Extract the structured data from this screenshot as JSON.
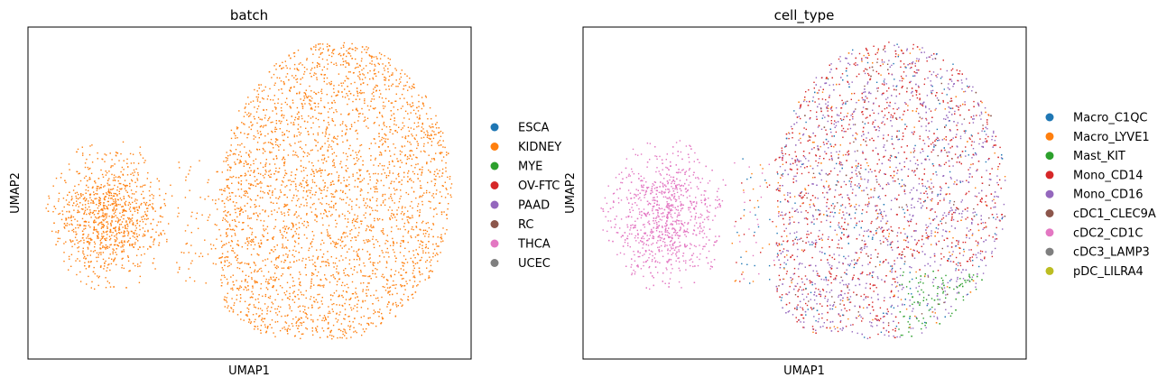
{
  "chart_data": [
    {
      "type": "scatter",
      "title": "batch",
      "xlabel": "UMAP1",
      "ylabel": "UMAP2",
      "xticks": [],
      "yticks": [],
      "grid": false,
      "legend_position": "right",
      "legend": [
        {
          "name": "ESCA",
          "color": "#1f77b4"
        },
        {
          "name": "KIDNEY",
          "color": "#ff7f0e"
        },
        {
          "name": "MYE",
          "color": "#2ca02c"
        },
        {
          "name": "OV-FTC",
          "color": "#d62728"
        },
        {
          "name": "PAAD",
          "color": "#9467bd"
        },
        {
          "name": "RC",
          "color": "#8c564b"
        },
        {
          "name": "THCA",
          "color": "#e377c2"
        },
        {
          "name": "UCEC",
          "color": "#7f7f7f"
        }
      ],
      "point_mix": {
        "KIDNEY": 1.0
      }
    },
    {
      "type": "scatter",
      "title": "cell_type",
      "xlabel": "UMAP1",
      "ylabel": "UMAP2",
      "xticks": [],
      "yticks": [],
      "grid": false,
      "legend_position": "right",
      "legend": [
        {
          "name": "Macro_C1QC",
          "color": "#1f77b4"
        },
        {
          "name": "Macro_LYVE1",
          "color": "#ff7f0e"
        },
        {
          "name": "Mast_KIT",
          "color": "#2ca02c"
        },
        {
          "name": "Mono_CD14",
          "color": "#d62728"
        },
        {
          "name": "Mono_CD16",
          "color": "#9467bd"
        },
        {
          "name": "cDC1_CLEC9A",
          "color": "#8c564b"
        },
        {
          "name": "cDC2_CD1C",
          "color": "#e377c2"
        },
        {
          "name": "cDC3_LAMP3",
          "color": "#7f7f7f"
        },
        {
          "name": "pDC_LILRA4",
          "color": "#bcbd22"
        }
      ],
      "point_mix": {
        "cDC2_CD1C": "left cluster",
        "Mono_CD14": 0.4,
        "Mono_CD16": 0.4,
        "Macro_C1QC": 0.07,
        "Macro_LYVE1": 0.07,
        "Mast_KIT": "bottom-right",
        "pDC_LILRA4": "bottom-right edge"
      }
    }
  ]
}
